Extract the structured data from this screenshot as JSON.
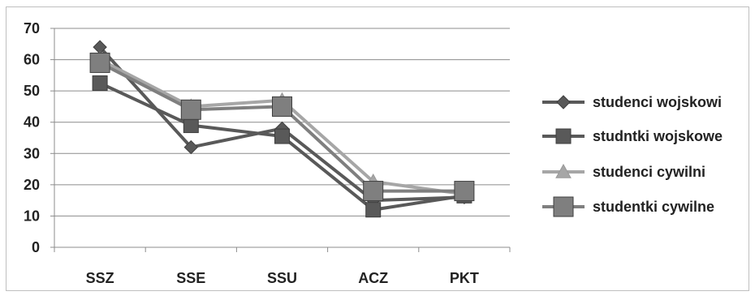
{
  "chart_data": {
    "type": "line",
    "title": "",
    "xlabel": "",
    "ylabel": "",
    "categories": [
      "SSZ",
      "SSE",
      "SSU",
      "ACZ",
      "PKT"
    ],
    "ylim": [
      0,
      70
    ],
    "yticks": [
      "0",
      "10",
      "20",
      "30",
      "40",
      "50",
      "60",
      "70"
    ],
    "grid": true,
    "legend_position": "right",
    "series": [
      {
        "name": "studenci wojskowi",
        "marker": "diamond",
        "color": "#595959",
        "values": [
          64,
          32,
          38,
          15,
          16
        ]
      },
      {
        "name": "studntki wojskowe",
        "marker": "square",
        "color": "#595959",
        "values": [
          52.5,
          39,
          35.5,
          12,
          16.5
        ]
      },
      {
        "name": "studenci cywilni",
        "marker": "triangle",
        "color": "#a6a6a6",
        "values": [
          60,
          45,
          47,
          21,
          17
        ]
      },
      {
        "name": "studentki cywilne",
        "marker": "square-large",
        "color": "#7f7f7f",
        "values": [
          59,
          44,
          45,
          18,
          18
        ]
      }
    ]
  }
}
